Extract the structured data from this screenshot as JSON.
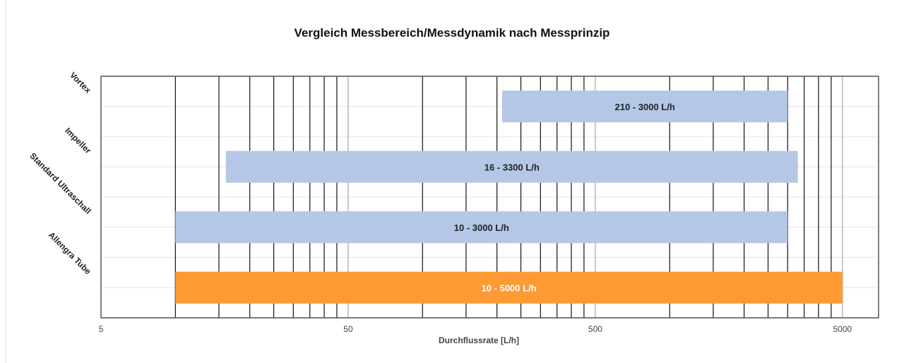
{
  "chart_data": {
    "type": "bar",
    "orientation": "horizontal-floating",
    "title": "Vergleich Messbereich/Messdynamik nach Messprinzip",
    "xlabel": "Durchflussrate  [L/h]",
    "ylabel": "",
    "xscale": "log",
    "xlim": [
      5,
      7000
    ],
    "xticks": [
      5,
      50,
      500,
      5000
    ],
    "xtick_labels": [
      "5",
      "50",
      "500",
      "5000"
    ],
    "minor_gridlines": [
      10,
      15,
      20,
      25,
      30,
      35,
      40,
      45,
      100,
      150,
      200,
      250,
      300,
      350,
      400,
      450,
      1000,
      1500,
      2000,
      2500,
      3000,
      3500,
      4000,
      4500,
      5000
    ],
    "grid": true,
    "categories": [
      "Vortex",
      "Impeller",
      "Standard Ultraschall",
      "Allengra Tube"
    ],
    "series": [
      {
        "name": "Vortex",
        "start": 210,
        "end": 3000,
        "label": "210 - 3000 L/h",
        "color": "#b4c7e7"
      },
      {
        "name": "Impeller",
        "start": 16,
        "end": 3300,
        "label": "16 - 3300 L/h",
        "color": "#b4c7e7"
      },
      {
        "name": "Standard Ultraschall",
        "start": 10,
        "end": 3000,
        "label": "10 - 3000 L/h",
        "color": "#b4c7e7"
      },
      {
        "name": "Allengra Tube",
        "start": 10,
        "end": 5000,
        "label": "10 - 5000 L/h",
        "color": "#fd9a33",
        "label_color": "#ffffff"
      }
    ]
  }
}
